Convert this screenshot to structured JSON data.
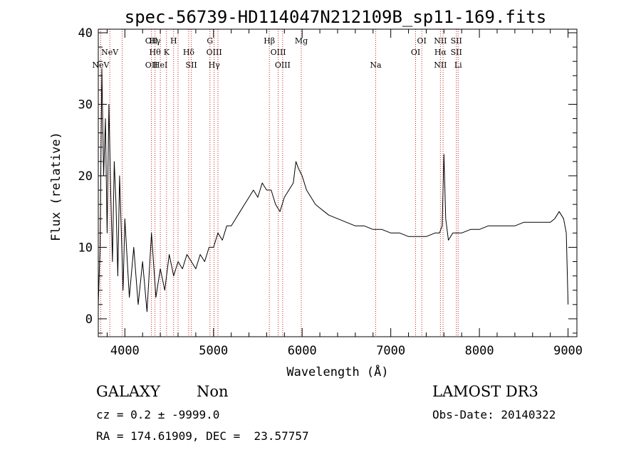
{
  "chart_data": {
    "type": "line",
    "title": "spec-56739-HD114047N212109B_sp11-169.fits",
    "xlabel": "Wavelength (Å)",
    "ylabel": "Flux (relative)",
    "xlim": [
      3700,
      9100
    ],
    "ylim": [
      -2.5,
      40.5
    ],
    "xticks": [
      4000,
      5000,
      6000,
      7000,
      8000,
      9000
    ],
    "xtick_labels": [
      "4000",
      "5000",
      "6000",
      "7000",
      "8000",
      "9000"
    ],
    "yticks": [
      0,
      10,
      20,
      30,
      40
    ],
    "ytick_labels": [
      "0",
      "10",
      "20",
      "30",
      "40"
    ],
    "series": [
      {
        "name": "spectrum",
        "x": [
          3700,
          3720,
          3740,
          3760,
          3780,
          3800,
          3820,
          3840,
          3860,
          3880,
          3900,
          3920,
          3940,
          3960,
          3980,
          4000,
          4050,
          4100,
          4150,
          4200,
          4250,
          4300,
          4350,
          4400,
          4450,
          4500,
          4550,
          4600,
          4650,
          4700,
          4750,
          4800,
          4850,
          4900,
          4950,
          5000,
          5050,
          5100,
          5150,
          5200,
          5250,
          5300,
          5350,
          5400,
          5450,
          5500,
          5550,
          5600,
          5650,
          5700,
          5750,
          5800,
          5850,
          5900,
          5930,
          5960,
          6000,
          6050,
          6100,
          6150,
          6200,
          6250,
          6300,
          6400,
          6500,
          6600,
          6700,
          6800,
          6900,
          7000,
          7100,
          7200,
          7300,
          7400,
          7500,
          7550,
          7580,
          7600,
          7620,
          7650,
          7700,
          7800,
          7900,
          8000,
          8100,
          8200,
          8300,
          8400,
          8500,
          8600,
          8700,
          8800,
          8850,
          8900,
          8950,
          8980,
          9000
        ],
        "values": [
          2,
          10,
          35,
          20,
          28,
          12,
          30,
          18,
          8,
          22,
          16,
          6,
          20,
          12,
          4,
          14,
          3,
          10,
          2,
          8,
          1,
          12,
          3,
          7,
          4,
          9,
          6,
          8,
          7,
          9,
          8,
          7,
          9,
          8,
          10,
          10,
          12,
          11,
          13,
          13,
          14,
          15,
          16,
          17,
          18,
          17,
          19,
          18,
          18,
          16,
          15,
          17,
          18,
          19,
          22,
          21,
          20,
          18,
          17,
          16,
          15.5,
          15,
          14.5,
          14,
          13.5,
          13,
          13,
          12.5,
          12.5,
          12,
          12,
          11.5,
          11.5,
          11.5,
          12,
          12,
          13,
          23,
          14,
          11,
          12,
          12,
          12.5,
          12.5,
          13,
          13,
          13,
          13,
          13.5,
          13.5,
          13.5,
          13.5,
          14,
          15,
          14,
          12,
          2
        ]
      }
    ],
    "lines": [
      {
        "w": 3727,
        "labels": [
          "NeV"
        ],
        "pos": "low"
      },
      {
        "w": 3830,
        "labels": [
          "NeV"
        ],
        "pos": "mid"
      },
      {
        "w": 3970,
        "labels": [],
        "pos": "none"
      },
      {
        "w": 4300,
        "labels": [
          "OII",
          "OII"
        ],
        "pos": "top_low"
      },
      {
        "w": 4340,
        "labels": [
          "Hγ",
          "Hθ"
        ],
        "pos": "top_mid"
      },
      {
        "w": 4400,
        "labels": [
          "HeI"
        ],
        "pos": "low"
      },
      {
        "w": 4470,
        "labels": [
          "K"
        ],
        "pos": "mid"
      },
      {
        "w": 4550,
        "labels": [
          "H"
        ],
        "pos": "top"
      },
      {
        "w": 4600,
        "labels": [],
        "pos": "none"
      },
      {
        "w": 4720,
        "labels": [
          "Hδ"
        ],
        "pos": "mid"
      },
      {
        "w": 4750,
        "labels": [
          "SII"
        ],
        "pos": "low"
      },
      {
        "w": 4960,
        "labels": [
          "G"
        ],
        "pos": "top"
      },
      {
        "w": 5007,
        "labels": [
          "OIII",
          "Hγ"
        ],
        "pos": "mid_low"
      },
      {
        "w": 5050,
        "labels": [],
        "pos": "none"
      },
      {
        "w": 5630,
        "labels": [
          "Hβ"
        ],
        "pos": "top"
      },
      {
        "w": 5730,
        "labels": [
          "OIII"
        ],
        "pos": "mid"
      },
      {
        "w": 5780,
        "labels": [
          "OIII"
        ],
        "pos": "low"
      },
      {
        "w": 5990,
        "labels": [
          "Mg"
        ],
        "pos": "top"
      },
      {
        "w": 6830,
        "labels": [
          "Na"
        ],
        "pos": "low"
      },
      {
        "w": 7280,
        "labels": [
          "OI"
        ],
        "pos": "mid"
      },
      {
        "w": 7350,
        "labels": [
          "OI"
        ],
        "pos": "top"
      },
      {
        "w": 7560,
        "labels": [
          "NII",
          "Hα",
          "NII"
        ],
        "pos": "all"
      },
      {
        "w": 7590,
        "labels": [],
        "pos": "none"
      },
      {
        "w": 7740,
        "labels": [
          "SII",
          "SII"
        ],
        "pos": "top_mid"
      },
      {
        "w": 7760,
        "labels": [
          "Li"
        ],
        "pos": "low"
      }
    ]
  },
  "info": {
    "classification": "GALAXY",
    "subclass": "Non",
    "survey": "LAMOST DR3",
    "cz": "cz = 0.2 ± -9999.0",
    "obs_date": "Obs-Date: 20140322",
    "coords": "RA = 174.61909, DEC =  23.57757"
  }
}
